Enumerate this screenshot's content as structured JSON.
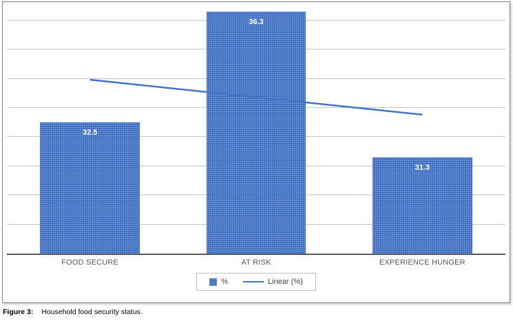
{
  "chart_data": {
    "type": "bar",
    "title": "",
    "categories": [
      "FOOD SECURE",
      "AT RISK",
      "EXPERIENCE HUNGER"
    ],
    "values": [
      32.5,
      36.3,
      31.3
    ],
    "data_labels": [
      "32.5",
      "36.3",
      "31.3"
    ],
    "ylim": [
      28,
      36.4
    ],
    "grid_step": 1,
    "grid": true,
    "trendline": {
      "label": "Linear (%)",
      "start_value": 33.97,
      "end_value": 32.77
    },
    "legend": {
      "position": "bottom",
      "entries": [
        {
          "label": "%",
          "marker": "pattern-bar"
        },
        {
          "label": "Linear (%)",
          "marker": "line"
        }
      ]
    },
    "colors": {
      "bar": "#4472C4",
      "line": "#4472C4",
      "gridline": "#c6c6c6",
      "axis": "#595959",
      "data_label_text": "#FFFFFF",
      "category_text": "#595959"
    }
  },
  "caption": {
    "prefix": "Figure 3:",
    "text": "Household food security status."
  }
}
